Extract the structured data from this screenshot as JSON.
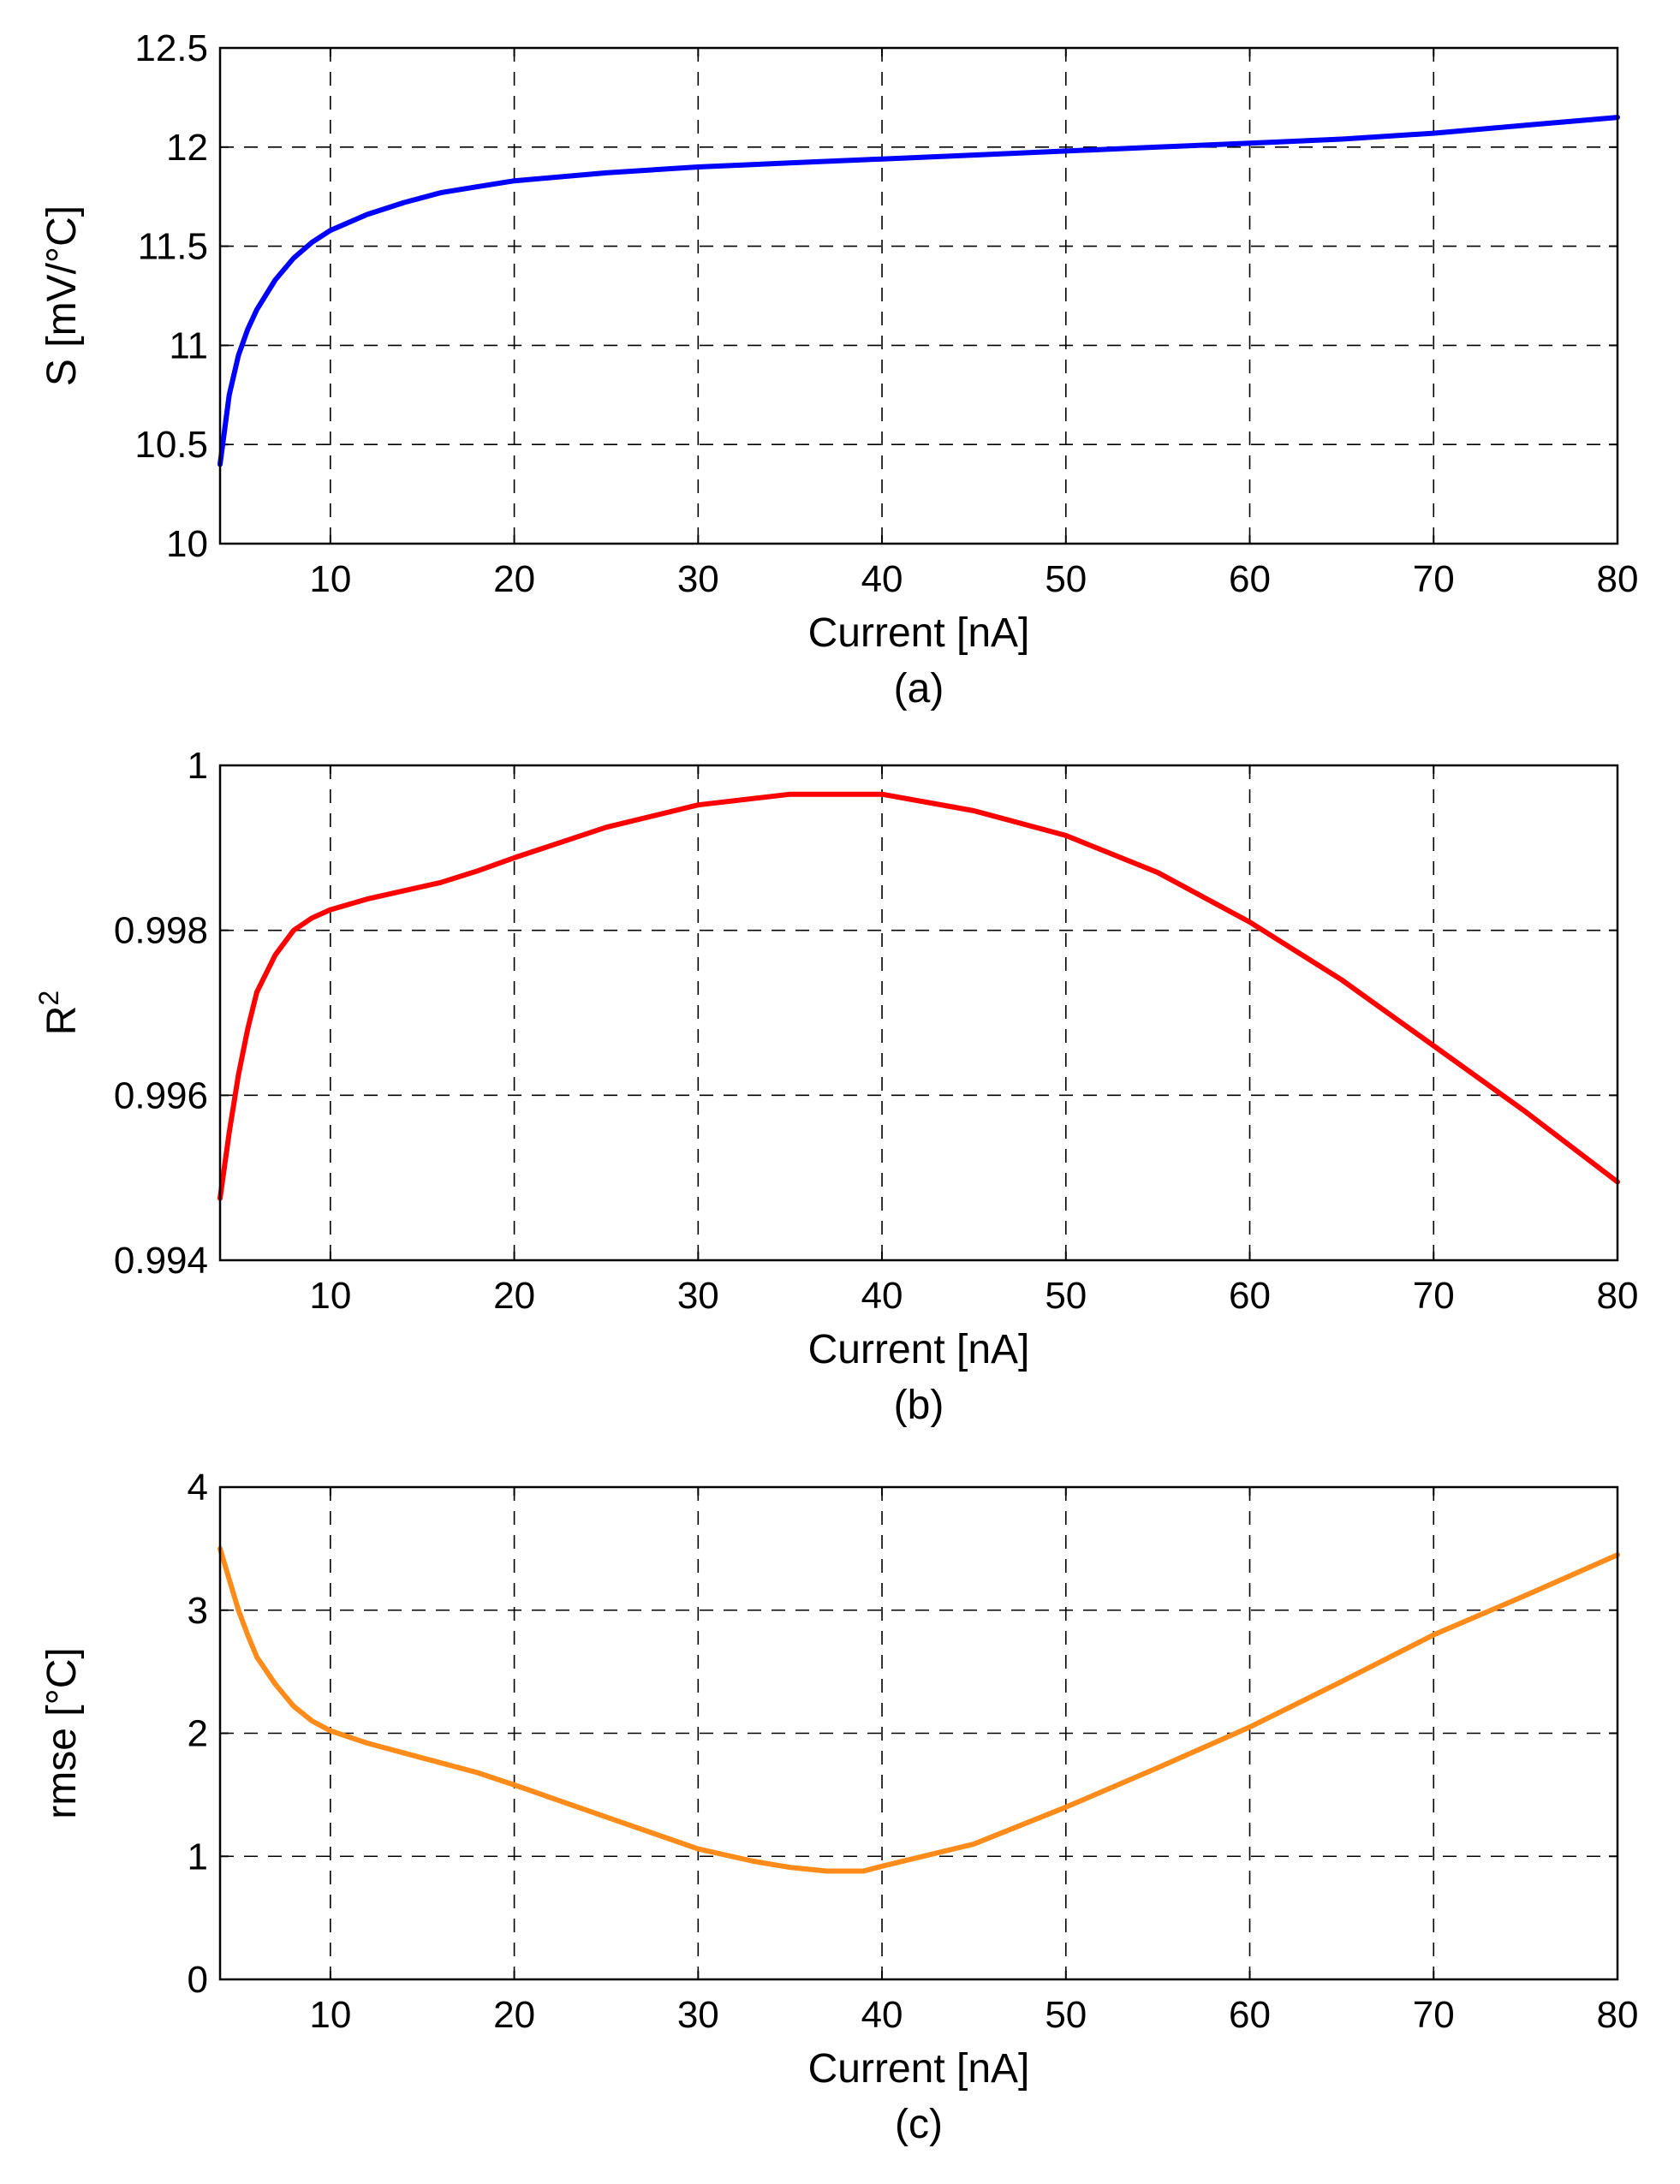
{
  "chart_data": [
    {
      "type": "line",
      "caption": "(a)",
      "xlabel": "Current [nA]",
      "ylabel": "S [mV/°C]",
      "xlim": [
        4,
        80
      ],
      "ylim": [
        10,
        12.5
      ],
      "xticks": [
        10,
        20,
        30,
        40,
        50,
        60,
        70,
        80
      ],
      "yticks": [
        10,
        10.5,
        11,
        11.5,
        12,
        12.5
      ],
      "ytick_labels": [
        "10",
        "10.5",
        "11",
        "11.5",
        "12",
        "12.5"
      ],
      "grid": true,
      "color": "#0000ff",
      "x": [
        4,
        4.5,
        5,
        5.5,
        6,
        7,
        8,
        9,
        10,
        12,
        14,
        16,
        18,
        20,
        25,
        30,
        35,
        40,
        45,
        50,
        55,
        60,
        65,
        70,
        75,
        80
      ],
      "y": [
        10.4,
        10.75,
        10.95,
        11.08,
        11.18,
        11.33,
        11.44,
        11.52,
        11.58,
        11.66,
        11.72,
        11.77,
        11.8,
        11.83,
        11.87,
        11.9,
        11.92,
        11.94,
        11.96,
        11.98,
        12.0,
        12.02,
        12.04,
        12.07,
        12.11,
        12.15
      ]
    },
    {
      "type": "line",
      "caption": "(b)",
      "xlabel": "Current [nA]",
      "ylabel": "R",
      "ylabel_sup": "2",
      "xlim": [
        4,
        80
      ],
      "ylim": [
        0.994,
        1
      ],
      "xticks": [
        10,
        20,
        30,
        40,
        50,
        60,
        70,
        80
      ],
      "yticks": [
        0.994,
        0.996,
        0.998,
        1
      ],
      "ytick_labels": [
        "0.994",
        "0.996",
        "0.998",
        "1"
      ],
      "grid": true,
      "color": "#ff0000",
      "x": [
        4,
        4.5,
        5,
        5.5,
        6,
        7,
        8,
        9,
        10,
        12,
        14,
        16,
        18,
        20,
        25,
        30,
        35,
        40,
        45,
        50,
        55,
        60,
        65,
        70,
        75,
        80
      ],
      "y": [
        0.99475,
        0.99555,
        0.99625,
        0.9968,
        0.99725,
        0.9977,
        0.998,
        0.99815,
        0.99825,
        0.99838,
        0.99848,
        0.99858,
        0.99872,
        0.99888,
        0.99925,
        0.99952,
        0.99965,
        0.99965,
        0.99945,
        0.99915,
        0.9987,
        0.9981,
        0.9974,
        0.9966,
        0.9958,
        0.99495
      ]
    },
    {
      "type": "line",
      "caption": "(c)",
      "xlabel": "Current [nA]",
      "ylabel": "rmse [°C]",
      "xlim": [
        4,
        80
      ],
      "ylim": [
        0,
        4
      ],
      "xticks": [
        10,
        20,
        30,
        40,
        50,
        60,
        70,
        80
      ],
      "yticks": [
        0,
        1,
        2,
        3,
        4
      ],
      "ytick_labels": [
        "0",
        "1",
        "2",
        "3",
        "4"
      ],
      "grid": true,
      "color": "#ff8c1a",
      "x": [
        4,
        4.5,
        5,
        5.5,
        6,
        7,
        8,
        9,
        10,
        12,
        15,
        18,
        20,
        25,
        30,
        33,
        35,
        37,
        39,
        40,
        45,
        50,
        55,
        60,
        65,
        70,
        75,
        80
      ],
      "y": [
        3.5,
        3.25,
        3.0,
        2.8,
        2.62,
        2.4,
        2.22,
        2.1,
        2.02,
        1.92,
        1.8,
        1.68,
        1.58,
        1.32,
        1.06,
        0.96,
        0.91,
        0.88,
        0.88,
        0.92,
        1.1,
        1.4,
        1.72,
        2.05,
        2.42,
        2.8,
        3.12,
        3.45
      ]
    }
  ]
}
